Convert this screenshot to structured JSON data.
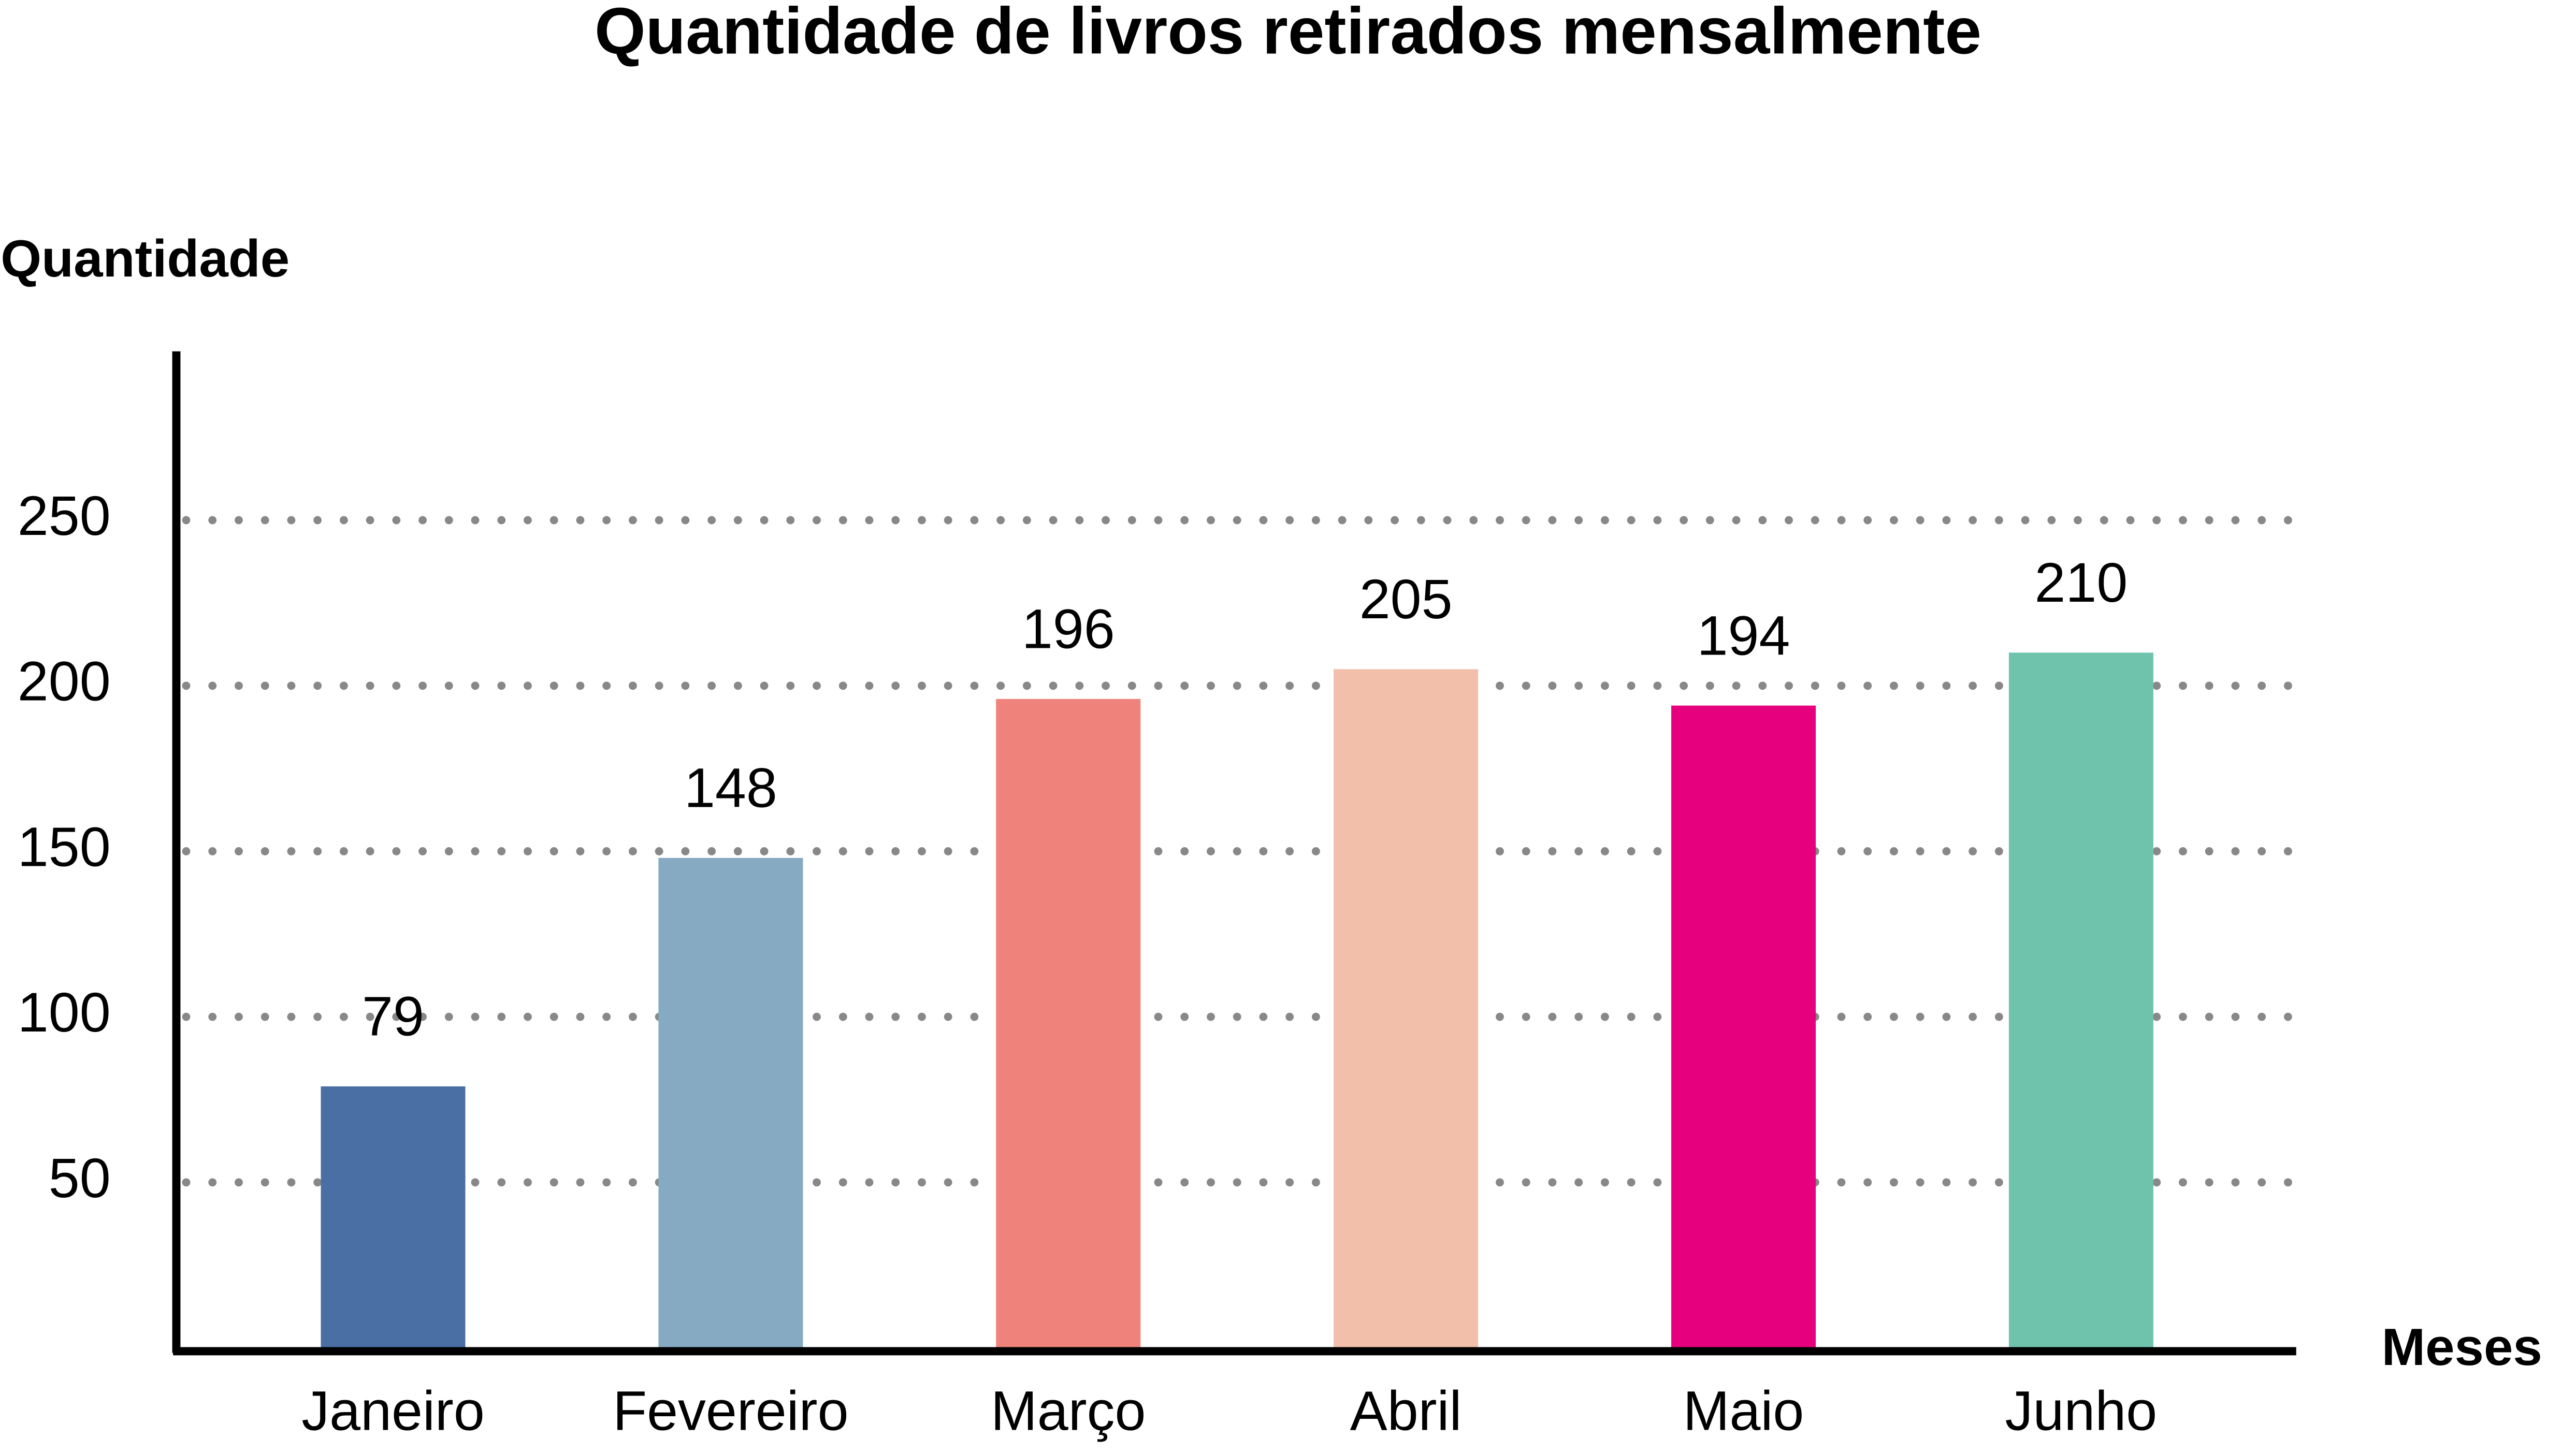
{
  "chart_data": {
    "type": "bar",
    "title": "Quantidade de livros retirados mensalmente",
    "y_label": "Quantidade",
    "x_label": "Meses",
    "categories": [
      "Janeiro",
      "Fevereiro",
      "Março",
      "Abril",
      "Maio",
      "Junho"
    ],
    "values": [
      79,
      148,
      196,
      205,
      194,
      210
    ],
    "colors": [
      "#4a6fa5",
      "#86aac2",
      "#ef837b",
      "#f2bfab",
      "#e6007e",
      "#6fc3ad"
    ],
    "ylim": [
      0,
      300
    ],
    "yticks": [
      50,
      100,
      150,
      200,
      250
    ],
    "grid": true
  }
}
